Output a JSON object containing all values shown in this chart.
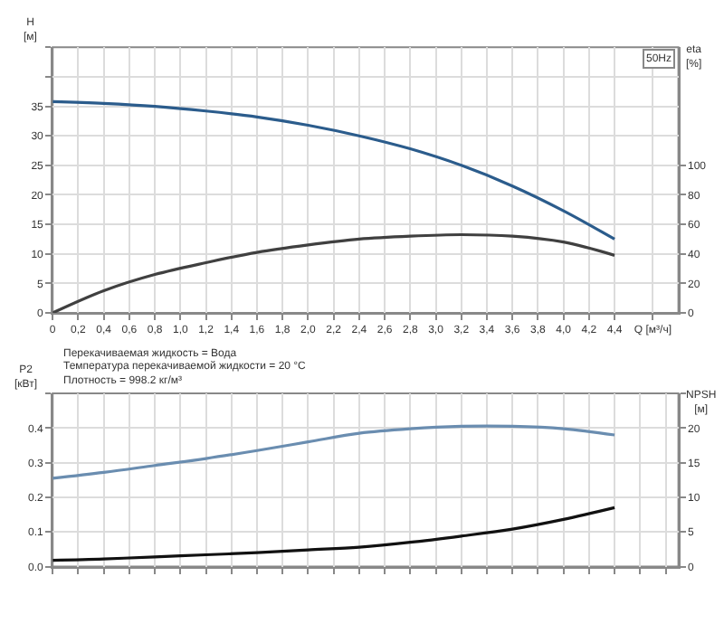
{
  "chart_data": [
    {
      "type": "line",
      "x": [
        0,
        0.4,
        0.8,
        1.2,
        1.6,
        2.0,
        2.4,
        2.8,
        3.2,
        3.6,
        4.0,
        4.4
      ],
      "series": [
        {
          "color": "#2b5c8c",
          "values": [
            35.8,
            35.5,
            35.0,
            34.2,
            33.2,
            31.8,
            30.0,
            27.8,
            25.0,
            21.5,
            17.3,
            12.5
          ]
        },
        {
          "color": "#404040",
          "axis": "y2",
          "values": [
            0,
            15,
            26,
            34,
            41,
            46,
            50,
            52,
            53,
            52,
            48,
            39
          ]
        }
      ],
      "ylabel": "H\n[м]",
      "y2label": "eta\n[%]",
      "xlim": [
        0,
        4.9
      ],
      "xticks": [
        0,
        {
          "value": 0.2,
          "label": "0,2"
        },
        {
          "value": 0.4,
          "label": "0,4"
        },
        {
          "value": 0.6,
          "label": "0,6"
        },
        {
          "value": 0.8,
          "label": "0,8"
        },
        {
          "value": 1.0,
          "label": "1,0"
        },
        {
          "value": 1.2,
          "label": "1,2"
        },
        {
          "value": 1.4,
          "label": "1,4"
        },
        {
          "value": 1.6,
          "label": "1,6"
        },
        {
          "value": 1.8,
          "label": "1,8"
        },
        {
          "value": 2.0,
          "label": "2,0"
        },
        {
          "value": 2.2,
          "label": "2,2"
        },
        {
          "value": 2.4,
          "label": "2,4"
        },
        {
          "value": 2.6,
          "label": "2,6"
        },
        {
          "value": 2.8,
          "label": "2,8"
        },
        {
          "value": 3.0,
          "label": "3,0"
        },
        {
          "value": 3.2,
          "label": "3,2"
        },
        {
          "value": 3.4,
          "label": "3,4"
        },
        {
          "value": 3.6,
          "label": "3,6"
        },
        {
          "value": 3.8,
          "label": "3,8"
        },
        {
          "value": 4.0,
          "label": "4,0"
        },
        {
          "value": 4.2,
          "label": "4,2"
        },
        {
          "value": 4.4,
          "label": "4,4"
        },
        {
          "value": 4.7,
          "label": "Q [м³/ч]"
        }
      ],
      "ylim": [
        0,
        45
      ],
      "yticks": [
        0,
        5,
        10,
        15,
        20,
        25,
        30,
        35,
        {
          "value": 40,
          "label": null
        },
        {
          "value": 45,
          "label": null
        }
      ],
      "y2lim": [
        0,
        180
      ],
      "y2ticks": [
        0,
        20,
        40,
        60,
        80,
        100
      ],
      "grid": true,
      "legend_title": "50Hz",
      "marker": "none",
      "line_style": "solid",
      "annotations": [
        "Перекачиваемая жидкость = Вода",
        "Температура перекачиваемой жидкости = 20 °C",
        "Плотность = 998.2 кг/м³"
      ]
    },
    {
      "type": "line",
      "x": [
        0,
        0.4,
        0.8,
        1.2,
        1.6,
        2.0,
        2.4,
        2.8,
        3.2,
        3.6,
        4.0,
        4.4
      ],
      "series": [
        {
          "color": "#6a8db0",
          "values": [
            0.255,
            0.272,
            0.292,
            0.312,
            0.335,
            0.36,
            0.385,
            0.398,
            0.405,
            0.405,
            0.398,
            0.38
          ]
        },
        {
          "color": "#111111",
          "axis": "y2",
          "values": [
            0.9,
            1.1,
            1.4,
            1.7,
            2.0,
            2.4,
            2.8,
            3.5,
            4.4,
            5.4,
            6.8,
            8.5
          ]
        }
      ],
      "ylabel": "P2\n[кВт]",
      "y2label": "NPSH\n[м]",
      "xlim": [
        0,
        4.9
      ],
      "xticks": [
        0,
        0.2,
        0.4,
        0.6,
        0.8,
        1.0,
        1.2,
        1.4,
        1.6,
        1.8,
        2.0,
        2.2,
        2.4,
        2.6,
        2.8,
        3.0,
        3.2,
        3.4,
        3.6,
        3.8,
        4.0,
        4.2,
        4.4,
        4.6,
        4.8
      ],
      "ylim": [
        0,
        0.5
      ],
      "yticks": [
        {
          "value": 0,
          "label": "0.0"
        },
        0.1,
        0.2,
        0.3,
        0.4,
        {
          "value": 0.5,
          "label": null
        }
      ],
      "y2lim": [
        0,
        25
      ],
      "y2ticks": [
        0,
        5,
        10,
        15,
        20,
        {
          "value": 25,
          "label": null
        }
      ],
      "grid": true,
      "tick_labels": "y",
      "marker": "none",
      "line_style": "solid"
    }
  ]
}
